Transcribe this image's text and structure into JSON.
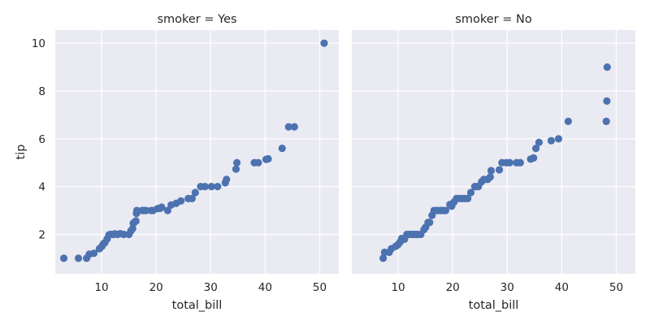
{
  "chart_data": {
    "type": "scatter",
    "xlabel": "total_bill",
    "ylabel": "tip",
    "xlim": [
      1.5,
      53.5
    ],
    "ylim": [
      0.35,
      10.55
    ],
    "xticks": [
      10,
      20,
      30,
      40,
      50
    ],
    "yticks": [
      2,
      4,
      6,
      8,
      10
    ],
    "grid": true,
    "marker_color": "#4c72b0",
    "background_color": "#eaeaf2",
    "grid_color": "#ffffff",
    "panels": [
      {
        "title": "smoker = Yes",
        "x": [
          3.07,
          5.75,
          7.25,
          7.74,
          8.58,
          9.6,
          10.07,
          10.34,
          10.59,
          11.02,
          11.35,
          11.61,
          12.16,
          12.43,
          12.9,
          13.42,
          14.07,
          15.01,
          15.36,
          15.69,
          15.81,
          16.0,
          16.29,
          16.4,
          16.47,
          17.46,
          17.78,
          18.15,
          19.08,
          19.44,
          20.29,
          20.76,
          21.01,
          22.12,
          22.76,
          23.68,
          24.55,
          25.89,
          26.59,
          27.18,
          28.17,
          28.97,
          30.14,
          31.27,
          32.68,
          32.9,
          34.65,
          34.81,
          38.01,
          38.73,
          40.17,
          40.55,
          43.11,
          44.3,
          45.35,
          50.81
        ],
        "y": [
          1.0,
          1.0,
          1.0,
          1.17,
          1.21,
          1.4,
          1.5,
          1.61,
          1.65,
          1.81,
          1.98,
          2.0,
          2.0,
          2.02,
          2.0,
          2.03,
          2.0,
          2.0,
          2.14,
          2.24,
          2.47,
          2.5,
          2.56,
          2.88,
          3.0,
          3.0,
          3.0,
          3.0,
          3.0,
          3.0,
          3.08,
          3.09,
          3.14,
          3.0,
          3.23,
          3.3,
          3.4,
          3.5,
          3.5,
          3.75,
          4.0,
          4.0,
          4.0,
          4.0,
          4.16,
          4.3,
          4.73,
          5.0,
          5.0,
          5.0,
          5.14,
          5.16,
          5.6,
          6.5,
          6.5,
          10.0
        ]
      },
      {
        "title": "smoker = No",
        "x": [
          7.25,
          7.51,
          8.35,
          8.77,
          9.55,
          9.94,
          10.33,
          10.65,
          11.17,
          11.59,
          12.03,
          12.54,
          12.74,
          13.13,
          13.51,
          14.15,
          14.73,
          15.04,
          15.48,
          15.77,
          16.21,
          16.58,
          16.97,
          17.31,
          17.82,
          17.92,
          18.29,
          18.71,
          19.49,
          19.81,
          20.23,
          20.69,
          21.16,
          21.7,
          22.23,
          22.76,
          23.33,
          24.06,
          24.27,
          24.71,
          25.29,
          25.71,
          26.41,
          26.88,
          27.05,
          28.55,
          29.03,
          29.85,
          30.46,
          31.71,
          32.4,
          34.3,
          34.83,
          35.26,
          35.83,
          38.07,
          39.42,
          41.19,
          48.17,
          48.27,
          48.33
        ],
        "y": [
          1.0,
          1.25,
          1.25,
          1.4,
          1.5,
          1.56,
          1.67,
          1.83,
          1.8,
          2.0,
          2.0,
          2.0,
          2.0,
          2.0,
          2.0,
          2.0,
          2.2,
          2.3,
          2.5,
          2.5,
          2.8,
          3.0,
          3.0,
          3.0,
          3.0,
          3.0,
          3.0,
          3.0,
          3.25,
          3.18,
          3.35,
          3.5,
          3.5,
          3.5,
          3.5,
          3.5,
          3.75,
          4.0,
          4.0,
          4.0,
          4.2,
          4.3,
          4.3,
          4.4,
          4.67,
          4.7,
          5.0,
          5.0,
          5.0,
          5.0,
          5.0,
          5.15,
          5.2,
          5.6,
          5.85,
          5.92,
          6.0,
          6.73,
          6.73,
          7.58,
          9.0
        ]
      }
    ]
  }
}
